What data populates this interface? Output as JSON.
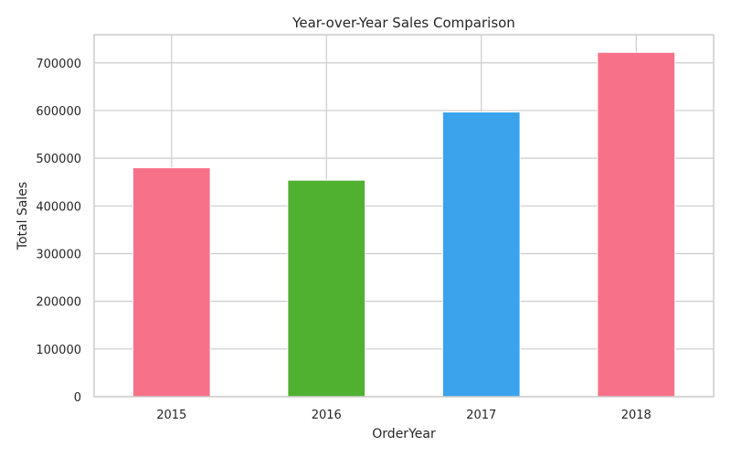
{
  "chart_data": {
    "type": "bar",
    "title": "Year-over-Year Sales Comparison",
    "xlabel": "OrderYear",
    "ylabel": "Total Sales",
    "categories": [
      "2015",
      "2016",
      "2017",
      "2018"
    ],
    "values": [
      480000,
      454000,
      597000,
      722000
    ],
    "colors": [
      "#f77189",
      "#50b131",
      "#3ba3ec",
      "#f77189"
    ],
    "ylim": [
      0,
      759000
    ],
    "yticks": [
      0,
      100000,
      200000,
      300000,
      400000,
      500000,
      600000,
      700000
    ],
    "ytick_labels": [
      "0",
      "100000",
      "200000",
      "300000",
      "400000",
      "500000",
      "600000",
      "700000"
    ],
    "grid": true,
    "legend": "none"
  }
}
